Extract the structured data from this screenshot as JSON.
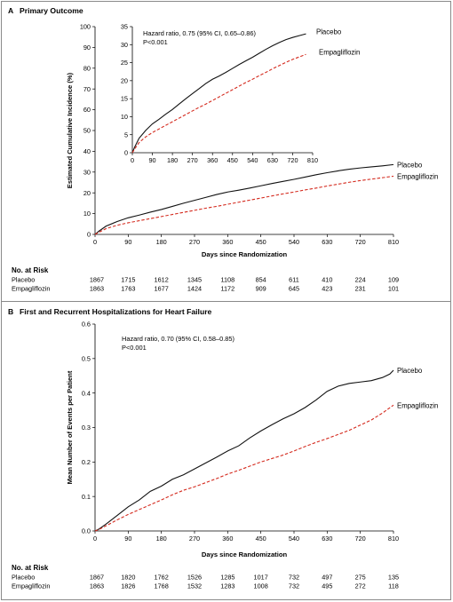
{
  "chart_data": [
    {
      "id": "A",
      "type": "line",
      "panel_letter": "A",
      "title": "Primary Outcome",
      "xlabel": "Days since Randomization",
      "ylabel": "Estimated Cumulative Incidence (%)",
      "xlim": [
        0,
        810
      ],
      "ylim": [
        0,
        100
      ],
      "x_ticks": [
        0,
        90,
        180,
        270,
        360,
        450,
        540,
        630,
        720,
        810
      ],
      "y_ticks": [
        0,
        10,
        20,
        30,
        40,
        50,
        60,
        70,
        80,
        90,
        100
      ],
      "series": [
        {
          "name": "Placebo",
          "color": "#111111",
          "dash": "solid",
          "x": [
            0,
            10,
            30,
            60,
            90,
            120,
            150,
            180,
            210,
            240,
            270,
            300,
            330,
            360,
            390,
            420,
            450,
            480,
            510,
            540,
            570,
            600,
            630,
            660,
            690,
            720,
            750,
            780,
            810
          ],
          "y": [
            0,
            1.5,
            4.0,
            6.2,
            8.0,
            9.3,
            10.7,
            12.0,
            13.5,
            15.0,
            16.4,
            17.8,
            19.2,
            20.4,
            21.3,
            22.3,
            23.4,
            24.5,
            25.5,
            26.5,
            27.6,
            28.7,
            29.7,
            30.6,
            31.4,
            32.0,
            32.5,
            33.0,
            33.6
          ]
        },
        {
          "name": "Empagliflozin",
          "color": "#d42a1e",
          "dash": "dashed",
          "x": [
            0,
            10,
            30,
            60,
            90,
            120,
            150,
            180,
            210,
            240,
            270,
            300,
            330,
            360,
            390,
            420,
            450,
            480,
            510,
            540,
            570,
            600,
            630,
            660,
            690,
            720,
            750,
            780,
            810
          ],
          "y": [
            0,
            1.0,
            2.8,
            4.4,
            5.6,
            6.6,
            7.6,
            8.6,
            9.6,
            10.6,
            11.6,
            12.6,
            13.5,
            14.5,
            15.5,
            16.5,
            17.5,
            18.5,
            19.5,
            20.4,
            21.4,
            22.3,
            23.3,
            24.2,
            25.1,
            25.9,
            26.6,
            27.3,
            28.0
          ]
        }
      ],
      "inset": {
        "xlim": [
          0,
          810
        ],
        "ylim": [
          0,
          35
        ],
        "x_ticks": [
          0,
          90,
          180,
          270,
          360,
          450,
          540,
          630,
          720,
          810
        ],
        "y_ticks": [
          0,
          5,
          10,
          15,
          20,
          25,
          30,
          35
        ],
        "annotation_line1": "Hazard ratio, 0.75 (95% CI, 0.65–0.86)",
        "annotation_line2": "P<0.001"
      },
      "risk_table": {
        "header": "No. at Risk",
        "x": [
          0,
          90,
          180,
          270,
          360,
          450,
          540,
          630,
          720,
          810
        ],
        "rows": [
          {
            "label": "Placebo",
            "values": [
              "1867",
              "1715",
              "1612",
              "1345",
              "1108",
              "854",
              "611",
              "410",
              "224",
              "109"
            ]
          },
          {
            "label": "Empagliflozin",
            "values": [
              "1863",
              "1763",
              "1677",
              "1424",
              "1172",
              "909",
              "645",
              "423",
              "231",
              "101"
            ]
          }
        ]
      }
    },
    {
      "id": "B",
      "type": "line",
      "panel_letter": "B",
      "title": "First and Recurrent Hospitalizations for Heart Failure",
      "xlabel": "Days since Randomization",
      "ylabel": "Mean Number of Events per Patient",
      "xlim": [
        0,
        810
      ],
      "ylim": [
        0,
        0.6
      ],
      "x_ticks": [
        0,
        90,
        180,
        270,
        360,
        450,
        540,
        630,
        720,
        810
      ],
      "y_ticks": [
        0.0,
        0.1,
        0.2,
        0.3,
        0.4,
        0.5,
        0.6
      ],
      "tick_labels_y": [
        "0.0",
        "0.1",
        "0.2",
        "0.3",
        "0.4",
        "0.5",
        "0.6"
      ],
      "annotation_line1": "Hazard ratio, 0.70 (95% CI, 0.58–0.85)",
      "annotation_line2": "P<0.001",
      "series": [
        {
          "name": "Placebo",
          "color": "#111111",
          "dash": "solid",
          "x": [
            0,
            10,
            30,
            60,
            90,
            120,
            150,
            180,
            210,
            240,
            270,
            300,
            330,
            360,
            390,
            420,
            450,
            480,
            510,
            540,
            570,
            600,
            630,
            660,
            690,
            720,
            750,
            780,
            800,
            810
          ],
          "y": [
            0,
            0.005,
            0.02,
            0.045,
            0.07,
            0.09,
            0.115,
            0.13,
            0.15,
            0.163,
            0.18,
            0.197,
            0.214,
            0.232,
            0.247,
            0.27,
            0.29,
            0.308,
            0.325,
            0.34,
            0.358,
            0.38,
            0.405,
            0.42,
            0.428,
            0.432,
            0.436,
            0.445,
            0.455,
            0.466
          ]
        },
        {
          "name": "Empagliflozin",
          "color": "#d42a1e",
          "dash": "dashed",
          "x": [
            0,
            10,
            30,
            60,
            90,
            120,
            150,
            180,
            210,
            240,
            270,
            300,
            330,
            360,
            390,
            420,
            450,
            480,
            510,
            540,
            570,
            600,
            630,
            660,
            690,
            720,
            750,
            780,
            810
          ],
          "y": [
            0,
            0.004,
            0.015,
            0.032,
            0.048,
            0.062,
            0.076,
            0.09,
            0.105,
            0.118,
            0.128,
            0.14,
            0.152,
            0.165,
            0.176,
            0.188,
            0.2,
            0.21,
            0.22,
            0.232,
            0.245,
            0.257,
            0.268,
            0.28,
            0.292,
            0.307,
            0.322,
            0.342,
            0.365
          ]
        }
      ],
      "risk_table": {
        "header": "No. at Risk",
        "x": [
          0,
          90,
          180,
          270,
          360,
          450,
          540,
          630,
          720,
          810
        ],
        "rows": [
          {
            "label": "Placebo",
            "values": [
              "1867",
              "1820",
              "1762",
              "1526",
              "1285",
              "1017",
              "732",
              "497",
              "275",
              "135"
            ]
          },
          {
            "label": "Empagliflozin",
            "values": [
              "1863",
              "1826",
              "1768",
              "1532",
              "1283",
              "1008",
              "732",
              "495",
              "272",
              "118"
            ]
          }
        ]
      }
    }
  ]
}
